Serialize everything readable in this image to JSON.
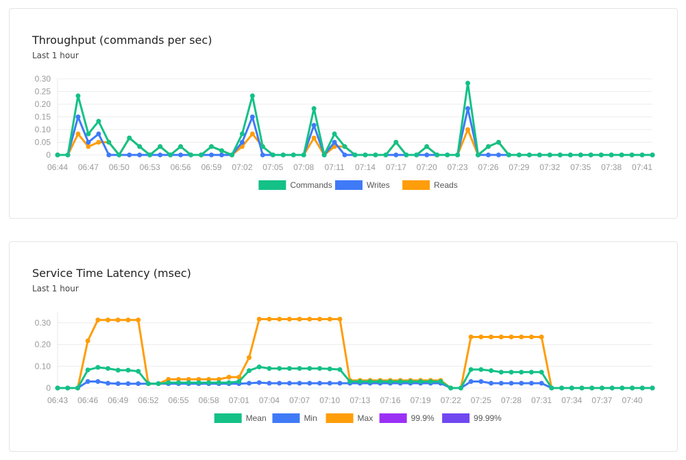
{
  "chart_data": [
    {
      "type": "line",
      "title": "Throughput (commands per sec)",
      "subtitle": "Last 1 hour",
      "x_start": "06:44",
      "x_end": "07:42",
      "x_step_minutes": 1,
      "x_tick_labels": [
        "06:44",
        "06:47",
        "06:50",
        "06:53",
        "06:56",
        "06:59",
        "07:02",
        "07:05",
        "07:08",
        "07:11",
        "07:14",
        "07:17",
        "07:20",
        "07:23",
        "07:26",
        "07:29",
        "07:32",
        "07:35",
        "07:38",
        "07:41"
      ],
      "ylim": [
        0,
        0.3
      ],
      "y_ticks": [
        "0",
        "0.05",
        "0.10",
        "0.15",
        "0.20",
        "0.25",
        "0.30"
      ],
      "grid": true,
      "legend": "bottom",
      "series": [
        {
          "name": "Commands",
          "color": "#14c187",
          "values": [
            0,
            0,
            0.233,
            0.083,
            0.133,
            0.05,
            0,
            0.067,
            0.033,
            0,
            0.033,
            0,
            0.033,
            0,
            0,
            0.033,
            0.017,
            0,
            0.083,
            0.233,
            0.033,
            0,
            0,
            0,
            0,
            0.183,
            0,
            0.083,
            0.033,
            0,
            0,
            0,
            0,
            0.05,
            0,
            0,
            0.033,
            0,
            0,
            0,
            0.283,
            0,
            0.033,
            0.05,
            0,
            0,
            0,
            0,
            0,
            0,
            0,
            0,
            0,
            0,
            0,
            0,
            0,
            0,
            0
          ]
        },
        {
          "name": "Writes",
          "color": "#3f7af7",
          "values": [
            0,
            0,
            0.15,
            0.05,
            0.083,
            0,
            0,
            0,
            0,
            0,
            0,
            0,
            0,
            0,
            0,
            0,
            0,
            0,
            0.05,
            0.15,
            0,
            0,
            0,
            0,
            0,
            0.117,
            0,
            0.05,
            0,
            0,
            0,
            0,
            0,
            0,
            0,
            0,
            0,
            0,
            0,
            0,
            0.183,
            0,
            0,
            0,
            0,
            0,
            0,
            0,
            0,
            0,
            0,
            0,
            0,
            0,
            0,
            0,
            0,
            0,
            0
          ]
        },
        {
          "name": "Reads",
          "color": "#ff9d0a",
          "values": [
            0,
            0,
            0.083,
            0.033,
            0.05,
            0.05,
            0,
            0.067,
            0.033,
            0,
            0.033,
            0,
            0.033,
            0,
            0,
            0.033,
            0.017,
            0,
            0.033,
            0.083,
            0.033,
            0,
            0,
            0,
            0,
            0.067,
            0,
            0.033,
            0.033,
            0,
            0,
            0,
            0,
            0.05,
            0,
            0,
            0.033,
            0,
            0,
            0,
            0.1,
            0,
            0.033,
            0.05,
            0,
            0,
            0,
            0,
            0,
            0,
            0,
            0,
            0,
            0,
            0,
            0,
            0,
            0,
            0
          ]
        }
      ]
    },
    {
      "type": "line",
      "title": "Service Time Latency (msec)",
      "subtitle": "Last 1 hour",
      "x_start": "06:43",
      "x_end": "07:42",
      "x_step_minutes": 1,
      "x_tick_labels": [
        "06:43",
        "06:46",
        "06:49",
        "06:52",
        "06:55",
        "06:58",
        "07:01",
        "07:04",
        "07:07",
        "07:10",
        "07:13",
        "07:16",
        "07:19",
        "07:22",
        "07:25",
        "07:28",
        "07:31",
        "07:34",
        "07:37",
        "07:40"
      ],
      "ylim": [
        0,
        0.35
      ],
      "y_ticks": [
        "0",
        "0.10",
        "0.20",
        "0.30"
      ],
      "grid": true,
      "legend": "bottom",
      "series": [
        {
          "name": "Mean",
          "color": "#14c187",
          "values": [
            0,
            0,
            0,
            0.083,
            0.095,
            0.09,
            0.082,
            0.082,
            0.077,
            0.02,
            0.02,
            0.025,
            0.025,
            0.025,
            0.025,
            0.025,
            0.025,
            0.025,
            0.03,
            0.08,
            0.097,
            0.09,
            0.09,
            0.09,
            0.09,
            0.09,
            0.09,
            0.088,
            0.085,
            0.03,
            0.03,
            0.03,
            0.03,
            0.03,
            0.03,
            0.03,
            0.03,
            0.03,
            0.03,
            0,
            0,
            0.085,
            0.085,
            0.08,
            0.073,
            0.073,
            0.073,
            0.073,
            0.073,
            0,
            0,
            0,
            0,
            0,
            0,
            0,
            0,
            0,
            0,
            0
          ]
        },
        {
          "name": "Min",
          "color": "#3f7af7",
          "values": [
            0,
            0,
            0,
            0.03,
            0.03,
            0.022,
            0.02,
            0.02,
            0.02,
            0.02,
            0.02,
            0.02,
            0.02,
            0.02,
            0.02,
            0.02,
            0.02,
            0.02,
            0.02,
            0.022,
            0.025,
            0.022,
            0.022,
            0.022,
            0.022,
            0.022,
            0.022,
            0.022,
            0.022,
            0.022,
            0.022,
            0.022,
            0.022,
            0.022,
            0.022,
            0.022,
            0.022,
            0.022,
            0.022,
            0,
            0,
            0.03,
            0.03,
            0.022,
            0.022,
            0.022,
            0.022,
            0.022,
            0.022,
            0,
            0,
            0,
            0,
            0,
            0,
            0,
            0,
            0,
            0,
            0
          ]
        },
        {
          "name": "Max",
          "color": "#ff9d0a",
          "values": [
            0,
            0,
            0,
            0.217,
            0.313,
            0.313,
            0.313,
            0.313,
            0.313,
            0.02,
            0.02,
            0.04,
            0.04,
            0.04,
            0.04,
            0.04,
            0.04,
            0.05,
            0.05,
            0.14,
            0.317,
            0.317,
            0.317,
            0.317,
            0.317,
            0.317,
            0.317,
            0.317,
            0.317,
            0.035,
            0.035,
            0.035,
            0.035,
            0.035,
            0.035,
            0.035,
            0.035,
            0.035,
            0.035,
            0,
            0,
            0.235,
            0.235,
            0.235,
            0.235,
            0.235,
            0.235,
            0.235,
            0.235,
            0,
            0,
            0,
            0,
            0,
            0,
            0,
            0,
            0,
            0,
            0
          ]
        },
        {
          "name": "99.9%",
          "color": "#9b30f5",
          "values": []
        },
        {
          "name": "99.99%",
          "color": "#7048f0",
          "values": []
        }
      ]
    }
  ]
}
